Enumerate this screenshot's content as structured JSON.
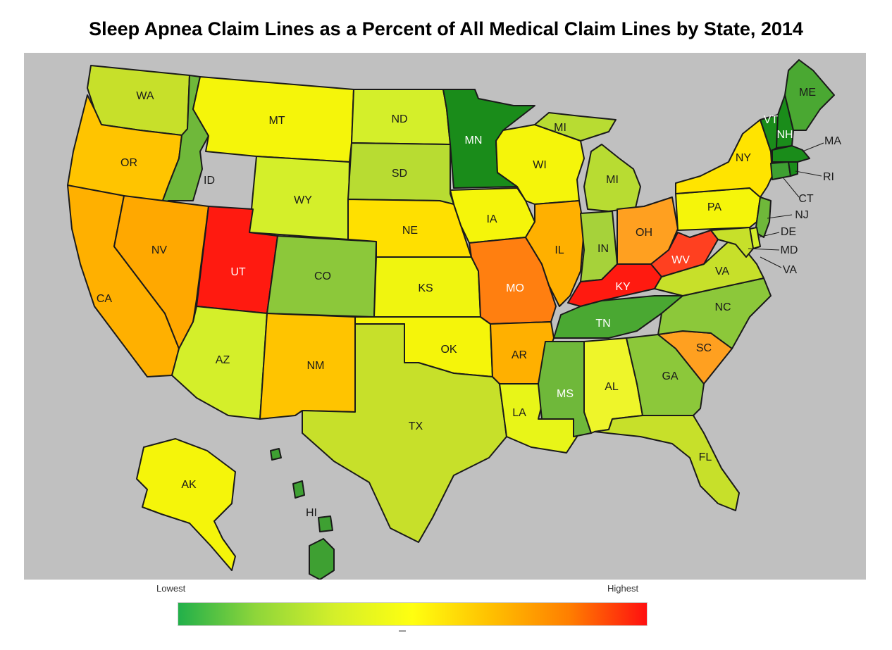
{
  "title": "Sleep Apnea Claim Lines as a Percent of All Medical Claim Lines by State, 2014",
  "legend": {
    "low_label": "Lowest",
    "high_label": "Highest",
    "gradient": [
      "#22b04a",
      "#8fd63a",
      "#d4ef2a",
      "#ffff10",
      "#ffc000",
      "#ff7f00",
      "#ff1010"
    ]
  },
  "colors": {
    "background": "#c0c0c0",
    "dark_green": "#1a8c1a",
    "mid_green": "#6fb83a",
    "yellow_green": "#c7e02a",
    "yellow": "#f5f50a",
    "gold": "#ffd800",
    "orange_light": "#ffb000",
    "orange": "#ff7f10",
    "red_orange": "#ff4020",
    "red": "#ff1a10"
  },
  "states": {
    "WA": "WA",
    "OR": "OR",
    "CA": "CA",
    "ID": "ID",
    "NV": "NV",
    "MT": "MT",
    "WY": "WY",
    "UT": "UT",
    "AZ": "AZ",
    "CO": "CO",
    "NM": "NM",
    "ND": "ND",
    "SD": "SD",
    "NE": "NE",
    "KS": "KS",
    "OK": "OK",
    "TX": "TX",
    "MN": "MN",
    "IA": "IA",
    "MO": "MO",
    "AR": "AR",
    "LA": "LA",
    "WI": "WI",
    "IL": "IL",
    "MI": "MI",
    "MI2": "MI",
    "IN": "IN",
    "OH": "OH",
    "KY": "KY",
    "TN": "TN",
    "MS": "MS",
    "AL": "AL",
    "GA": "GA",
    "FL": "FL",
    "SC": "SC",
    "NC": "NC",
    "VA": "VA",
    "WV": "WV",
    "PA": "PA",
    "NY": "NY",
    "ME": "ME",
    "VT": "VT",
    "NH": "NH",
    "MA": "MA",
    "RI": "RI",
    "CT": "CT",
    "NJ": "NJ",
    "DE": "DE",
    "MD": "MD",
    "VA2": "VA",
    "AK": "AK",
    "HI": "HI"
  }
}
